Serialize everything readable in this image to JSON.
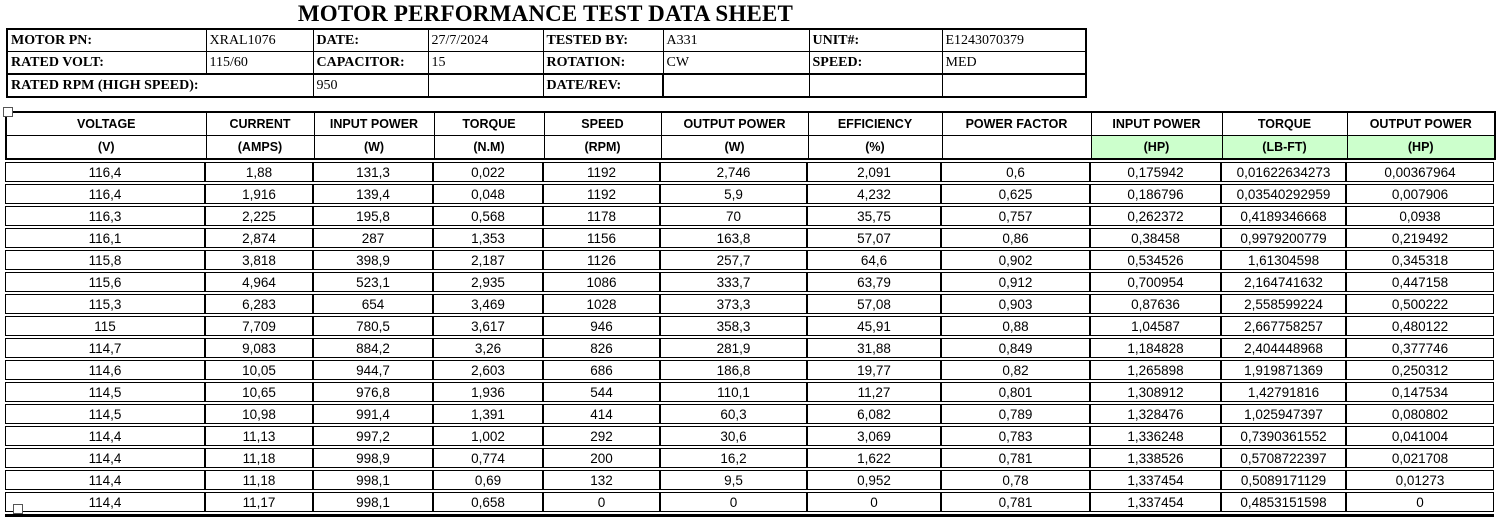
{
  "title": "MOTOR PERFORMANCE TEST DATA SHEET",
  "colors": {
    "unit_highlight": "#ccffcc",
    "border": "#000000",
    "background": "#ffffff"
  },
  "info": {
    "rows": [
      {
        "cells": [
          {
            "text": "MOTOR PN:",
            "bold": true
          },
          {
            "text": "XRAL1076"
          },
          {
            "text": "DATE:",
            "bold": true
          },
          {
            "text": "27/7/2024"
          },
          {
            "text": "TESTED BY:",
            "bold": true
          },
          {
            "text": "A331"
          },
          {
            "text": "UNIT#:",
            "bold": true
          },
          {
            "text": "E1243070379"
          }
        ]
      },
      {
        "cells": [
          {
            "text": "RATED VOLT:",
            "bold": true
          },
          {
            "text": "115/60"
          },
          {
            "text": "CAPACITOR:",
            "bold": true
          },
          {
            "text": "15"
          },
          {
            "text": "ROTATION:",
            "bold": true
          },
          {
            "text": "CW"
          },
          {
            "text": "SPEED:",
            "bold": true
          },
          {
            "text": "MED"
          }
        ]
      },
      {
        "cells": [
          {
            "text": "RATED RPM (HIGH SPEED):",
            "bold": true,
            "span": 2
          },
          {
            "text": "950"
          },
          {
            "text": ""
          },
          {
            "text": "DATE/REV:",
            "bold": true
          },
          {
            "text": ""
          },
          {
            "text": ""
          },
          {
            "text": ""
          }
        ]
      }
    ]
  },
  "table": {
    "columns": [
      {
        "name": "VOLTAGE",
        "unit": "(V)",
        "highlight": false
      },
      {
        "name": "CURRENT",
        "unit": "(AMPS)",
        "highlight": false
      },
      {
        "name": "INPUT POWER",
        "unit": "(W)",
        "highlight": false
      },
      {
        "name": "TORQUE",
        "unit": "(N.M)",
        "highlight": false
      },
      {
        "name": "SPEED",
        "unit": "(RPM)",
        "highlight": false
      },
      {
        "name": "OUTPUT POWER",
        "unit": "(W)",
        "highlight": false
      },
      {
        "name": "EFFICIENCY",
        "unit": "(%)",
        "highlight": false
      },
      {
        "name": "POWER FACTOR",
        "unit": "",
        "highlight": false
      },
      {
        "name": "INPUT POWER",
        "unit": "(HP)",
        "highlight": true
      },
      {
        "name": "TORQUE",
        "unit": "(LB-FT)",
        "highlight": true
      },
      {
        "name": "OUTPUT POWER",
        "unit": "(HP)",
        "highlight": true
      }
    ],
    "rows": [
      [
        "116,4",
        "1,88",
        "131,3",
        "0,022",
        "1192",
        "2,746",
        "2,091",
        "0,6",
        "0,175942",
        "0,01622634273",
        "0,00367964"
      ],
      [
        "116,4",
        "1,916",
        "139,4",
        "0,048",
        "1192",
        "5,9",
        "4,232",
        "0,625",
        "0,186796",
        "0,03540292959",
        "0,007906"
      ],
      [
        "116,3",
        "2,225",
        "195,8",
        "0,568",
        "1178",
        "70",
        "35,75",
        "0,757",
        "0,262372",
        "0,4189346668",
        "0,0938"
      ],
      [
        "116,1",
        "2,874",
        "287",
        "1,353",
        "1156",
        "163,8",
        "57,07",
        "0,86",
        "0,38458",
        "0,9979200779",
        "0,219492"
      ],
      [
        "115,8",
        "3,818",
        "398,9",
        "2,187",
        "1126",
        "257,7",
        "64,6",
        "0,902",
        "0,534526",
        "1,61304598",
        "0,345318"
      ],
      [
        "115,6",
        "4,964",
        "523,1",
        "2,935",
        "1086",
        "333,7",
        "63,79",
        "0,912",
        "0,700954",
        "2,164741632",
        "0,447158"
      ],
      [
        "115,3",
        "6,283",
        "654",
        "3,469",
        "1028",
        "373,3",
        "57,08",
        "0,903",
        "0,87636",
        "2,558599224",
        "0,500222"
      ],
      [
        "115",
        "7,709",
        "780,5",
        "3,617",
        "946",
        "358,3",
        "45,91",
        "0,88",
        "1,04587",
        "2,667758257",
        "0,480122"
      ],
      [
        "114,7",
        "9,083",
        "884,2",
        "3,26",
        "826",
        "281,9",
        "31,88",
        "0,849",
        "1,184828",
        "2,404448968",
        "0,377746"
      ],
      [
        "114,6",
        "10,05",
        "944,7",
        "2,603",
        "686",
        "186,8",
        "19,77",
        "0,82",
        "1,265898",
        "1,919871369",
        "0,250312"
      ],
      [
        "114,5",
        "10,65",
        "976,8",
        "1,936",
        "544",
        "110,1",
        "11,27",
        "0,801",
        "1,308912",
        "1,42791816",
        "0,147534"
      ],
      [
        "114,5",
        "10,98",
        "991,4",
        "1,391",
        "414",
        "60,3",
        "6,082",
        "0,789",
        "1,328476",
        "1,025947397",
        "0,080802"
      ],
      [
        "114,4",
        "11,13",
        "997,2",
        "1,002",
        "292",
        "30,6",
        "3,069",
        "0,783",
        "1,336248",
        "0,7390361552",
        "0,041004"
      ],
      [
        "114,4",
        "11,18",
        "998,9",
        "0,774",
        "200",
        "16,2",
        "1,622",
        "0,781",
        "1,338526",
        "0,5708722397",
        "0,021708"
      ],
      [
        "114,4",
        "11,18",
        "998,1",
        "0,69",
        "132",
        "9,5",
        "0,952",
        "0,78",
        "1,337454",
        "0,5089171129",
        "0,01273"
      ],
      [
        "114,4",
        "11,17",
        "998,1",
        "0,658",
        "0",
        "0",
        "0",
        "0,781",
        "1,337454",
        "0,4853151598",
        "0"
      ]
    ]
  }
}
